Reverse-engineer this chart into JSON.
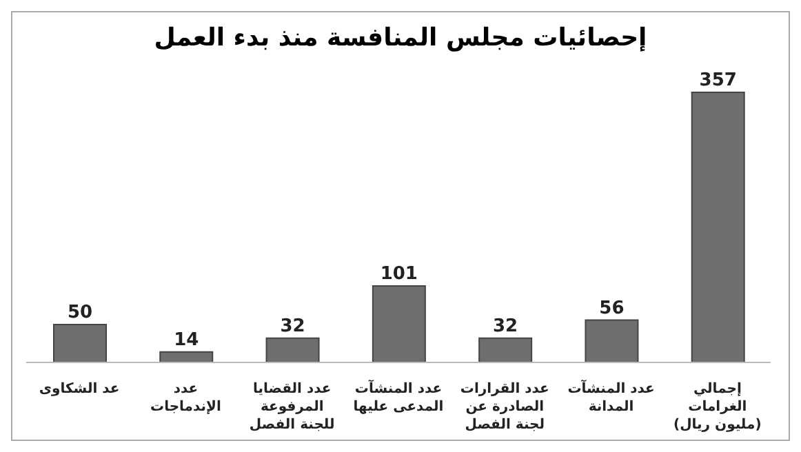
{
  "chart_data": {
    "type": "bar",
    "title": "إحصائيات مجلس المنافسة منذ بدء العمل",
    "categories": [
      "عد الشكاوى",
      "عدد الإندماجات",
      "عدد القضايا المرفوعة للجنة الفصل",
      "عدد المنشآت المدعى عليها",
      "عدد القرارات الصادرة عن لجنة الفصل",
      "عدد المنشآت المدانة",
      "إجمالي الغرامات (مليون ريال)"
    ],
    "values": [
      50,
      14,
      32,
      101,
      32,
      56,
      357
    ],
    "color": "#6e6e6e",
    "data_labels": true,
    "grid": false
  }
}
